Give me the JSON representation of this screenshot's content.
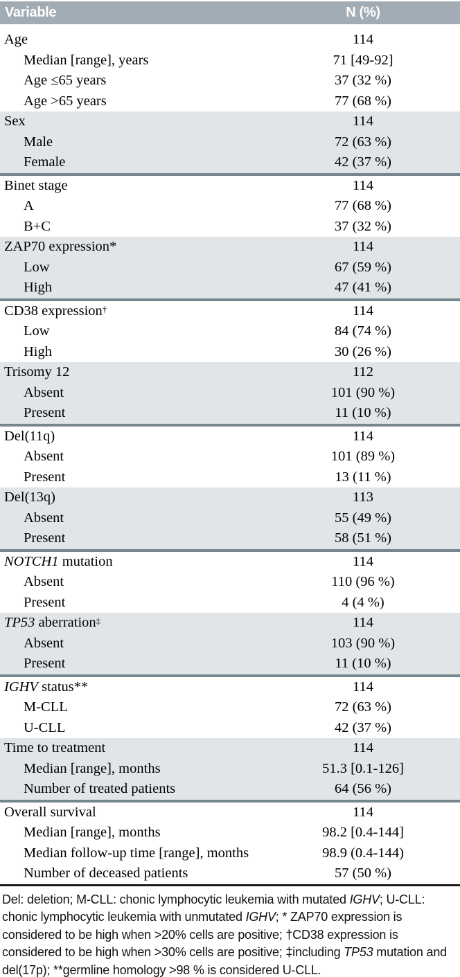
{
  "colors": {
    "header_bg": "#a1acb4",
    "header_text": "#ffffff",
    "shaded_section_bg": "#e1e5e8",
    "section_divider": "#76868f",
    "table_bottom_border": "#1a1a1a",
    "body_text": "#000000"
  },
  "table": {
    "header": {
      "variable": "Variable",
      "n_pct": "N (%)"
    },
    "sections": [
      {
        "shaded": false,
        "rows": [
          {
            "label": [
              {
                "t": "Age"
              }
            ],
            "value": "114",
            "indent": false
          },
          {
            "label": [
              {
                "t": "Median [range], years"
              }
            ],
            "value": "71 [49-92]",
            "indent": true
          },
          {
            "label": [
              {
                "t": "Age ≤65 years"
              }
            ],
            "value": "37 (32 %)",
            "indent": true
          },
          {
            "label": [
              {
                "t": "Age >65 years"
              }
            ],
            "value": "77 (68 %)",
            "indent": true
          }
        ]
      },
      {
        "shaded": true,
        "rows": [
          {
            "label": [
              {
                "t": "Sex"
              }
            ],
            "value": "114",
            "indent": false
          },
          {
            "label": [
              {
                "t": "Male"
              }
            ],
            "value": "72 (63 %)",
            "indent": true
          },
          {
            "label": [
              {
                "t": "Female"
              }
            ],
            "value": "42 (37 %)",
            "indent": true
          }
        ]
      },
      {
        "shaded": false,
        "rows": [
          {
            "label": [
              {
                "t": "Binet stage"
              }
            ],
            "value": "114",
            "indent": false
          },
          {
            "label": [
              {
                "t": "A"
              }
            ],
            "value": "77 (68 %)",
            "indent": true
          },
          {
            "label": [
              {
                "t": "B+C"
              }
            ],
            "value": "37 (32 %)",
            "indent": true
          }
        ]
      },
      {
        "shaded": true,
        "rows": [
          {
            "label": [
              {
                "t": "ZAP70 expression*"
              }
            ],
            "value": "114",
            "indent": false
          },
          {
            "label": [
              {
                "t": "Low"
              }
            ],
            "value": "67 (59 %)",
            "indent": true
          },
          {
            "label": [
              {
                "t": "High"
              }
            ],
            "value": "47 (41 %)",
            "indent": true
          }
        ]
      },
      {
        "shaded": false,
        "rows": [
          {
            "label": [
              {
                "t": "CD38 expression"
              },
              {
                "t": "†",
                "sup": true
              }
            ],
            "value": "114",
            "indent": false
          },
          {
            "label": [
              {
                "t": "Low"
              }
            ],
            "value": "84 (74 %)",
            "indent": true
          },
          {
            "label": [
              {
                "t": "High"
              }
            ],
            "value": "30 (26 %)",
            "indent": true
          }
        ]
      },
      {
        "shaded": true,
        "rows": [
          {
            "label": [
              {
                "t": "Trisomy 12"
              }
            ],
            "value": "112",
            "indent": false
          },
          {
            "label": [
              {
                "t": "Absent"
              }
            ],
            "value": "101 (90 %)",
            "indent": true
          },
          {
            "label": [
              {
                "t": "Present"
              }
            ],
            "value": "11 (10 %)",
            "indent": true
          }
        ]
      },
      {
        "shaded": false,
        "rows": [
          {
            "label": [
              {
                "t": "Del(11q)"
              }
            ],
            "value": "114",
            "indent": false
          },
          {
            "label": [
              {
                "t": "Absent"
              }
            ],
            "value": "101 (89 %)",
            "indent": true
          },
          {
            "label": [
              {
                "t": "Present"
              }
            ],
            "value": "13 (11 %)",
            "indent": true
          }
        ]
      },
      {
        "shaded": true,
        "rows": [
          {
            "label": [
              {
                "t": "Del(13q)"
              }
            ],
            "value": "113",
            "indent": false
          },
          {
            "label": [
              {
                "t": "Absent"
              }
            ],
            "value": "55 (49 %)",
            "indent": true
          },
          {
            "label": [
              {
                "t": "Present"
              }
            ],
            "value": "58 (51 %)",
            "indent": true
          }
        ]
      },
      {
        "shaded": false,
        "rows": [
          {
            "label": [
              {
                "t": "NOTCH1",
                "i": true
              },
              {
                "t": " mutation"
              }
            ],
            "value": "114",
            "indent": false
          },
          {
            "label": [
              {
                "t": "Absent"
              }
            ],
            "value": "110 (96 %)",
            "indent": true
          },
          {
            "label": [
              {
                "t": "Present"
              }
            ],
            "value": "4 (4 %)",
            "indent": true
          }
        ]
      },
      {
        "shaded": true,
        "rows": [
          {
            "label": [
              {
                "t": "TP53",
                "i": true
              },
              {
                "t": " aberration"
              },
              {
                "t": "‡",
                "sup": true
              }
            ],
            "value": "114",
            "indent": false
          },
          {
            "label": [
              {
                "t": "Absent"
              }
            ],
            "value": "103 (90 %)",
            "indent": true
          },
          {
            "label": [
              {
                "t": "Present"
              }
            ],
            "value": "11 (10 %)",
            "indent": true
          }
        ]
      },
      {
        "shaded": false,
        "rows": [
          {
            "label": [
              {
                "t": "IGHV",
                "i": true
              },
              {
                "t": " status**"
              }
            ],
            "value": "114",
            "indent": false
          },
          {
            "label": [
              {
                "t": "M-CLL"
              }
            ],
            "value": "72 (63 %)",
            "indent": true
          },
          {
            "label": [
              {
                "t": "U-CLL"
              }
            ],
            "value": "42 (37 %)",
            "indent": true
          }
        ]
      },
      {
        "shaded": true,
        "rows": [
          {
            "label": [
              {
                "t": "Time to treatment"
              }
            ],
            "value": "114",
            "indent": false
          },
          {
            "label": [
              {
                "t": "Median [range], months"
              }
            ],
            "value": "51.3 [0.1-126]",
            "indent": true
          },
          {
            "label": [
              {
                "t": "Number of treated patients"
              }
            ],
            "value": "64 (56 %)",
            "indent": true
          }
        ]
      },
      {
        "shaded": false,
        "rows": [
          {
            "label": [
              {
                "t": "Overall survival"
              }
            ],
            "value": "114",
            "indent": false
          },
          {
            "label": [
              {
                "t": "Median [range], months"
              }
            ],
            "value": "98.2 [0.4-144]",
            "indent": true
          },
          {
            "label": [
              {
                "t": "Median follow-up time [range], months"
              }
            ],
            "value": "98.9 (0.4-144)",
            "indent": true
          },
          {
            "label": [
              {
                "t": "Number of deceased patients"
              }
            ],
            "value": "57 (50 %)",
            "indent": true
          }
        ]
      }
    ],
    "footnote_parts": [
      {
        "t": "Del: deletion; M-CLL: chonic lymphocytic leukemia with mutated "
      },
      {
        "t": "IGHV",
        "i": true
      },
      {
        "t": "; U-CLL: chonic lymphocytic leukemia with unmutated "
      },
      {
        "t": "IGHV",
        "i": true
      },
      {
        "t": "; * ZAP70 expression is considered to be high when  >20% cells are positive; †CD38 expression is considered to be high when >30% cells are positive; ‡including "
      },
      {
        "t": "TP53",
        "i": true
      },
      {
        "t": " mutation and del(17p); **germline homology >98 % is considered U-CLL."
      }
    ]
  }
}
